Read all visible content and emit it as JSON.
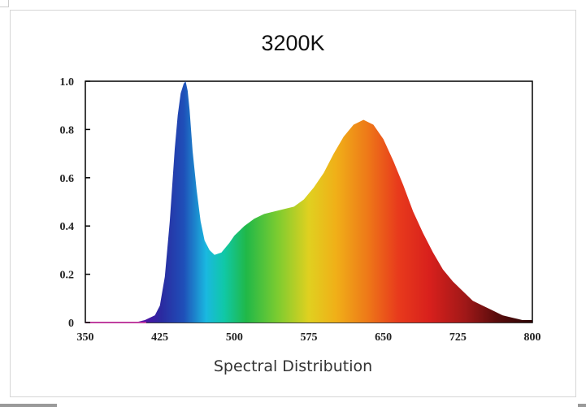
{
  "chart_data": {
    "type": "area",
    "title": "3200K",
    "xlabel": "Spectral Distribution",
    "ylabel": "",
    "xlim": [
      350,
      800
    ],
    "ylim": [
      0,
      1.0
    ],
    "x_ticks": [
      "350",
      "425",
      "500",
      "575",
      "650",
      "725",
      "800"
    ],
    "y_ticks": [
      "0",
      "0.2",
      "0.4",
      "0.6",
      "0.8",
      "1.0"
    ],
    "fill": "visible-spectrum gradient",
    "series": [
      {
        "x": [
          350,
          400,
          410,
          420,
          425,
          430,
          435,
          440,
          443,
          446,
          449,
          451,
          453,
          455,
          458,
          462,
          466,
          470,
          475,
          480,
          487,
          495,
          500,
          510,
          520,
          530,
          540,
          550,
          560,
          570,
          580,
          590,
          600,
          610,
          620,
          630,
          640,
          650,
          660,
          670,
          680,
          690,
          700,
          710,
          720,
          730,
          740,
          750,
          760,
          770,
          780,
          790,
          800
        ],
        "y": [
          0,
          0.0,
          0.01,
          0.03,
          0.07,
          0.19,
          0.42,
          0.72,
          0.86,
          0.95,
          0.99,
          1.0,
          0.96,
          0.88,
          0.71,
          0.55,
          0.42,
          0.34,
          0.3,
          0.28,
          0.29,
          0.33,
          0.36,
          0.4,
          0.43,
          0.45,
          0.46,
          0.47,
          0.48,
          0.51,
          0.56,
          0.62,
          0.7,
          0.77,
          0.82,
          0.84,
          0.82,
          0.76,
          0.67,
          0.57,
          0.46,
          0.37,
          0.29,
          0.22,
          0.17,
          0.13,
          0.09,
          0.07,
          0.05,
          0.03,
          0.02,
          0.01,
          0.01
        ]
      }
    ],
    "grid": false,
    "legend": "none"
  }
}
